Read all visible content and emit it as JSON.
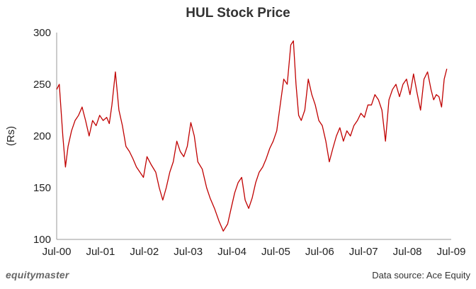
{
  "brand": {
    "logo_text": "equitymaster"
  },
  "source": "Data source: Ace Equity",
  "colors": {
    "line": "#c00000",
    "axis": "#999999",
    "grid": "#e6e6e6"
  },
  "chart_data": {
    "type": "line",
    "title": "HUL Stock Price",
    "xlabel": "",
    "ylabel": "(Rs)",
    "grid": false,
    "ylim": [
      100,
      300
    ],
    "yticks": [
      100,
      150,
      200,
      250,
      300
    ],
    "xlim": [
      2000.5,
      2009.5
    ],
    "xticks": [
      {
        "label": "Jul-00",
        "x": 2000.5
      },
      {
        "label": "Jul-01",
        "x": 2001.5
      },
      {
        "label": "Jul-02",
        "x": 2002.5
      },
      {
        "label": "Jul-03",
        "x": 2003.5
      },
      {
        "label": "Jul-04",
        "x": 2004.5
      },
      {
        "label": "Jul-05",
        "x": 2005.5
      },
      {
        "label": "Jul-06",
        "x": 2006.5
      },
      {
        "label": "Jul-07",
        "x": 2007.5
      },
      {
        "label": "Jul-08",
        "x": 2008.5
      },
      {
        "label": "Jul-09",
        "x": 2009.5
      }
    ],
    "series": [
      {
        "x": [
          2000.5,
          2000.56,
          2000.6,
          2000.64,
          2000.7,
          2000.76,
          2000.84,
          2000.92,
          2001.0,
          2001.08,
          2001.16,
          2001.24,
          2001.32,
          2001.4,
          2001.48,
          2001.56,
          2001.64,
          2001.7,
          2001.76,
          2001.84,
          2001.92,
          2002.0,
          2002.08,
          2002.16,
          2002.24,
          2002.32,
          2002.4,
          2002.48,
          2002.56,
          2002.66,
          2002.76,
          2002.84,
          2002.92,
          2003.0,
          2003.08,
          2003.16,
          2003.24,
          2003.32,
          2003.4,
          2003.48,
          2003.56,
          2003.64,
          2003.72,
          2003.82,
          2003.92,
          2004.0,
          2004.1,
          2004.2,
          2004.3,
          2004.4,
          2004.48,
          2004.56,
          2004.64,
          2004.72,
          2004.8,
          2004.88,
          2004.96,
          2005.04,
          2005.12,
          2005.2,
          2005.28,
          2005.36,
          2005.44,
          2005.52,
          2005.6,
          2005.68,
          2005.76,
          2005.84,
          2005.9,
          2005.96,
          2006.02,
          2006.08,
          2006.16,
          2006.24,
          2006.32,
          2006.4,
          2006.48,
          2006.56,
          2006.64,
          2006.72,
          2006.8,
          2006.88,
          2006.96,
          2007.04,
          2007.12,
          2007.2,
          2007.28,
          2007.36,
          2007.44,
          2007.52,
          2007.6,
          2007.68,
          2007.76,
          2007.84,
          2007.92,
          2008.0,
          2008.08,
          2008.16,
          2008.24,
          2008.32,
          2008.4,
          2008.48,
          2008.56,
          2008.64,
          2008.72,
          2008.8,
          2008.88,
          2008.96,
          2009.04,
          2009.1,
          2009.16,
          2009.22,
          2009.28,
          2009.34,
          2009.4
        ],
        "y": [
          245,
          250,
          225,
          200,
          170,
          190,
          205,
          215,
          220,
          228,
          215,
          200,
          215,
          210,
          220,
          215,
          218,
          212,
          230,
          262,
          225,
          210,
          190,
          185,
          178,
          170,
          165,
          160,
          180,
          172,
          165,
          150,
          138,
          150,
          165,
          175,
          195,
          185,
          180,
          190,
          213,
          200,
          175,
          168,
          150,
          140,
          130,
          118,
          108,
          115,
          130,
          145,
          155,
          160,
          138,
          130,
          140,
          155,
          165,
          170,
          178,
          188,
          195,
          205,
          230,
          255,
          250,
          288,
          292,
          250,
          220,
          215,
          225,
          255,
          240,
          230,
          215,
          210,
          195,
          175,
          188,
          200,
          208,
          195,
          205,
          200,
          210,
          215,
          222,
          218,
          230,
          230,
          240,
          235,
          225,
          195,
          235,
          245,
          250,
          238,
          250,
          255,
          240,
          260,
          242,
          225,
          255,
          262,
          245,
          235,
          240,
          238,
          228,
          255,
          265
        ]
      }
    ]
  }
}
